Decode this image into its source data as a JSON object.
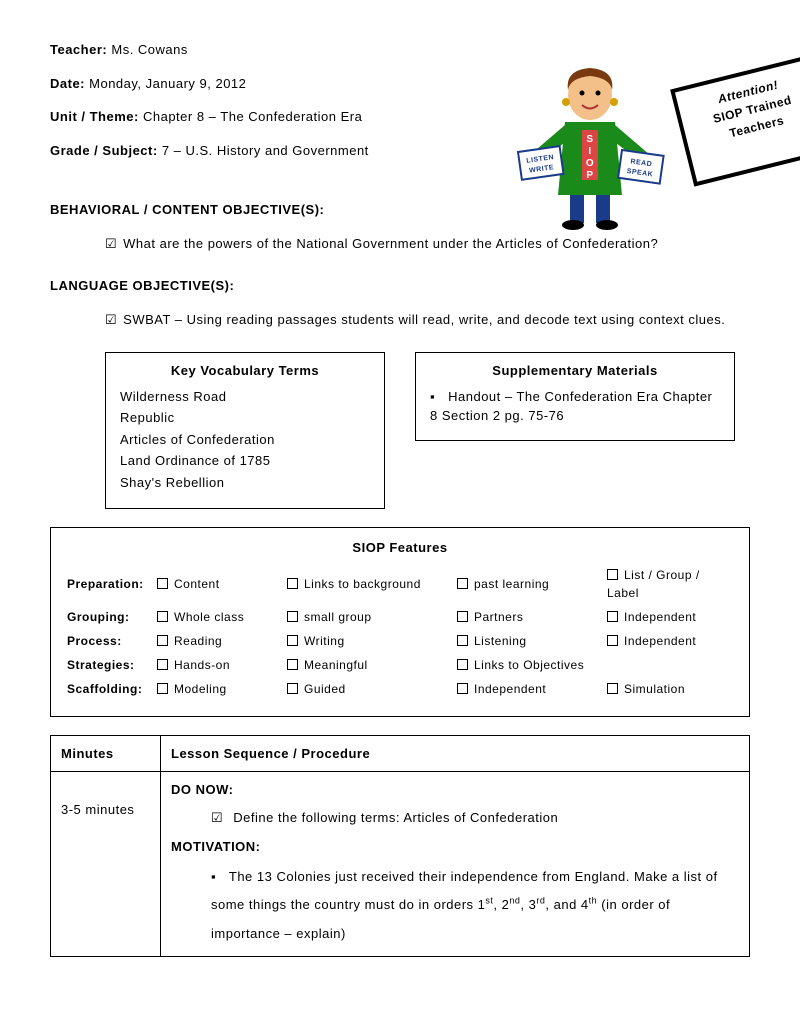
{
  "header": {
    "teacher_label": "Teacher:",
    "teacher": "Ms. Cowans",
    "date_label": "Date:",
    "date": "Monday, January 9, 2012",
    "unit_label": "Unit / Theme:",
    "unit": "Chapter 8 – The Confederation Era",
    "grade_label": "Grade / Subject:",
    "grade": "7 – U.S. History and Government"
  },
  "art": {
    "sign_line1": "Attention!",
    "sign_line2": "SIOP Trained",
    "sign_line3": "Teachers",
    "card_left_1": "LISTEN",
    "card_left_2": "WRITE",
    "card_right_1": "READ",
    "card_right_2": "SPEAK",
    "shirt": "SIOP"
  },
  "objectives": {
    "behavioral_title": "BEHAVIORAL / CONTENT OBJECTIVE(S):",
    "behavioral_text": "What are the powers of the National Government under the Articles of Confederation?",
    "language_title": "LANGUAGE OBJECTIVE(S):",
    "language_text": "SWBAT – Using reading passages students will read, write, and decode text using context clues."
  },
  "vocab": {
    "title": "Key Vocabulary Terms",
    "items": [
      "Wilderness Road",
      "Republic",
      "Articles of Confederation",
      "Land Ordinance of 1785",
      "Shay's Rebellion"
    ]
  },
  "supp": {
    "title": "Supplementary Materials",
    "item": "Handout – The Confederation Era Chapter 8 Section 2 pg. 75-76"
  },
  "siop": {
    "title": "SIOP Features",
    "rows": [
      {
        "label": "Preparation:",
        "c1": "Content",
        "c2": "Links to background",
        "c3": "past learning",
        "c4": "List / Group / Label"
      },
      {
        "label": "Grouping:",
        "c1": "Whole class",
        "c2": "small group",
        "c3": "Partners",
        "c4": "Independent"
      },
      {
        "label": "Process:",
        "c1": "Reading",
        "c2": "Writing",
        "c3": "Listening",
        "c4": "Independent"
      },
      {
        "label": "Strategies:",
        "c1": "Hands-on",
        "c2": "Meaningful",
        "c3": "Links to Objectives",
        "c4": ""
      },
      {
        "label": "Scaffolding:",
        "c1": "Modeling",
        "c2": "Guided",
        "c3": "Independent",
        "c4": "Simulation"
      }
    ]
  },
  "sequence": {
    "col1": "Minutes",
    "col2": "Lesson Sequence / Procedure",
    "time1": "3-5 minutes",
    "do_now_label": "DO NOW:",
    "do_now_text": "Define the following terms: Articles of Confederation",
    "motiv_label": "MOTIVATION:",
    "motiv_prefix": "The 13 Colonies just received their independence from England. Make a list of some things the country must do in orders 1",
    "motiv_suffix": " (in order of importance – explain)",
    "ord": {
      "st": "st",
      "nd": "nd",
      "rd": "rd",
      "th": "th"
    }
  }
}
